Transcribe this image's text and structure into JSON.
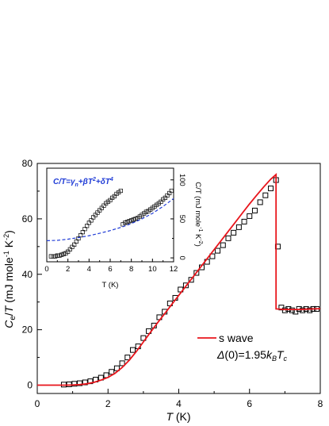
{
  "chart_data": [
    {
      "type": "scatter",
      "role": "main",
      "xlabel": "T (K)",
      "ylabel": "Ce/T (mJ mole-1 K-2)",
      "xlim": [
        0,
        8
      ],
      "ylim": [
        -3,
        80
      ],
      "xticks": [
        "0",
        "2",
        "4",
        "6",
        "8"
      ],
      "yticks": [
        "0",
        "20",
        "40",
        "60",
        "80"
      ],
      "grid": false,
      "legend": {
        "placement": "bottom-right",
        "line_label": "s wave",
        "fit_label": "Δ(0)=1.95kBTc"
      },
      "series": [
        {
          "name": "data",
          "marker": "open-square",
          "x": [
            0.75,
            0.9,
            1.05,
            1.2,
            1.35,
            1.5,
            1.65,
            1.8,
            1.95,
            2.1,
            2.25,
            2.4,
            2.55,
            2.7,
            2.85,
            3.0,
            3.15,
            3.3,
            3.45,
            3.6,
            3.75,
            3.9,
            4.05,
            4.2,
            4.35,
            4.5,
            4.65,
            4.8,
            4.95,
            5.1,
            5.25,
            5.4,
            5.55,
            5.7,
            5.85,
            6.0,
            6.15,
            6.3,
            6.45,
            6.6,
            6.75,
            6.8,
            6.9,
            7.0,
            7.1,
            7.2,
            7.3,
            7.4,
            7.5,
            7.6,
            7.7,
            7.8,
            7.9
          ],
          "y": [
            0.2,
            0.3,
            0.5,
            0.7,
            1.0,
            1.4,
            2.0,
            2.7,
            3.6,
            4.8,
            6.1,
            7.9,
            10.0,
            12.7,
            14.0,
            17.0,
            19.5,
            21.5,
            24.5,
            26.5,
            29.5,
            31.5,
            34.5,
            36.0,
            38.0,
            40.5,
            42.5,
            44.5,
            46.5,
            48.5,
            50.5,
            53.0,
            55.0,
            57.0,
            59.0,
            61.0,
            63.0,
            66.0,
            68.5,
            71.0,
            74.0,
            50.0,
            28.0,
            27.0,
            27.5,
            27.0,
            26.5,
            27.5,
            27.0,
            27.5,
            27.0,
            27.5,
            27.5
          ]
        },
        {
          "name": "s wave",
          "type": "line",
          "color": "#e8141b",
          "x": [
            0,
            0.8,
            1.0,
            1.2,
            1.4,
            1.6,
            1.8,
            2.0,
            2.2,
            2.4,
            2.6,
            2.8,
            3.0,
            3.2,
            3.4,
            3.6,
            3.8,
            4.0,
            4.2,
            4.4,
            4.6,
            4.8,
            5.0,
            5.2,
            5.4,
            5.6,
            5.8,
            6.0,
            6.2,
            6.4,
            6.6,
            6.75,
            6.75,
            7.0,
            7.4,
            7.8,
            8.0
          ],
          "y": [
            0,
            0,
            0.05,
            0.2,
            0.5,
            1.0,
            1.8,
            2.8,
            4.3,
            6.4,
            9.0,
            12.1,
            15.6,
            19.1,
            22.5,
            25.8,
            29.1,
            32.4,
            35.7,
            39.0,
            42.3,
            45.6,
            48.9,
            52.2,
            55.5,
            58.8,
            62.1,
            65.4,
            68.5,
            71.5,
            74.3,
            76.0,
            27.5,
            27.3,
            27.3,
            27.5,
            27.6
          ]
        }
      ]
    },
    {
      "type": "scatter",
      "role": "inset",
      "xlabel": "T (K)",
      "ylabel": "C/T (mJ mole-1 K-2)",
      "xlim": [
        0,
        12
      ],
      "ylim": [
        -5,
        115
      ],
      "xticks": [
        "0",
        "2",
        "4",
        "6",
        "8",
        "10",
        "12"
      ],
      "yticks": [
        "0",
        "50",
        "100"
      ],
      "y_axis_side": "right",
      "annotation": "C/T=γn+βT2+δT4",
      "series": [
        {
          "name": "data",
          "marker": "open-square",
          "x": [
            0.4,
            0.6,
            0.8,
            1.0,
            1.2,
            1.4,
            1.6,
            1.8,
            2.0,
            2.2,
            2.4,
            2.6,
            2.8,
            3.0,
            3.2,
            3.4,
            3.6,
            3.8,
            4.0,
            4.2,
            4.4,
            4.6,
            4.8,
            5.0,
            5.2,
            5.4,
            5.6,
            5.8,
            6.0,
            6.2,
            6.4,
            6.6,
            6.8,
            7.0,
            7.2,
            7.4,
            7.6,
            7.8,
            8.0,
            8.2,
            8.4,
            8.6,
            8.8,
            9.0,
            9.2,
            9.4,
            9.6,
            9.8,
            10.0,
            10.2,
            10.4,
            10.6,
            10.8,
            11.0,
            11.2,
            11.4,
            11.6,
            11.8
          ],
          "y": [
            2,
            2,
            2,
            3,
            3,
            4,
            5,
            6,
            8,
            11,
            14,
            17,
            21,
            25,
            29,
            33,
            37,
            41,
            45,
            48,
            52,
            55,
            58,
            61,
            64,
            67,
            70,
            72,
            74,
            77,
            79,
            82,
            84,
            86,
            43,
            45,
            46,
            47,
            48,
            49,
            50,
            51,
            53,
            55,
            57,
            59,
            60,
            62,
            64,
            66,
            68,
            70,
            72,
            75,
            77,
            80,
            83,
            86
          ]
        },
        {
          "name": "fit",
          "type": "line",
          "style": "dashed",
          "color": "#1f3bd6",
          "x": [
            0,
            1,
            2,
            3,
            4,
            5,
            6,
            7,
            8,
            9,
            10,
            11,
            12
          ],
          "y": [
            22,
            22.5,
            24,
            26,
            28.5,
            31.5,
            35,
            39,
            44,
            50,
            57,
            66,
            76
          ]
        }
      ]
    }
  ]
}
